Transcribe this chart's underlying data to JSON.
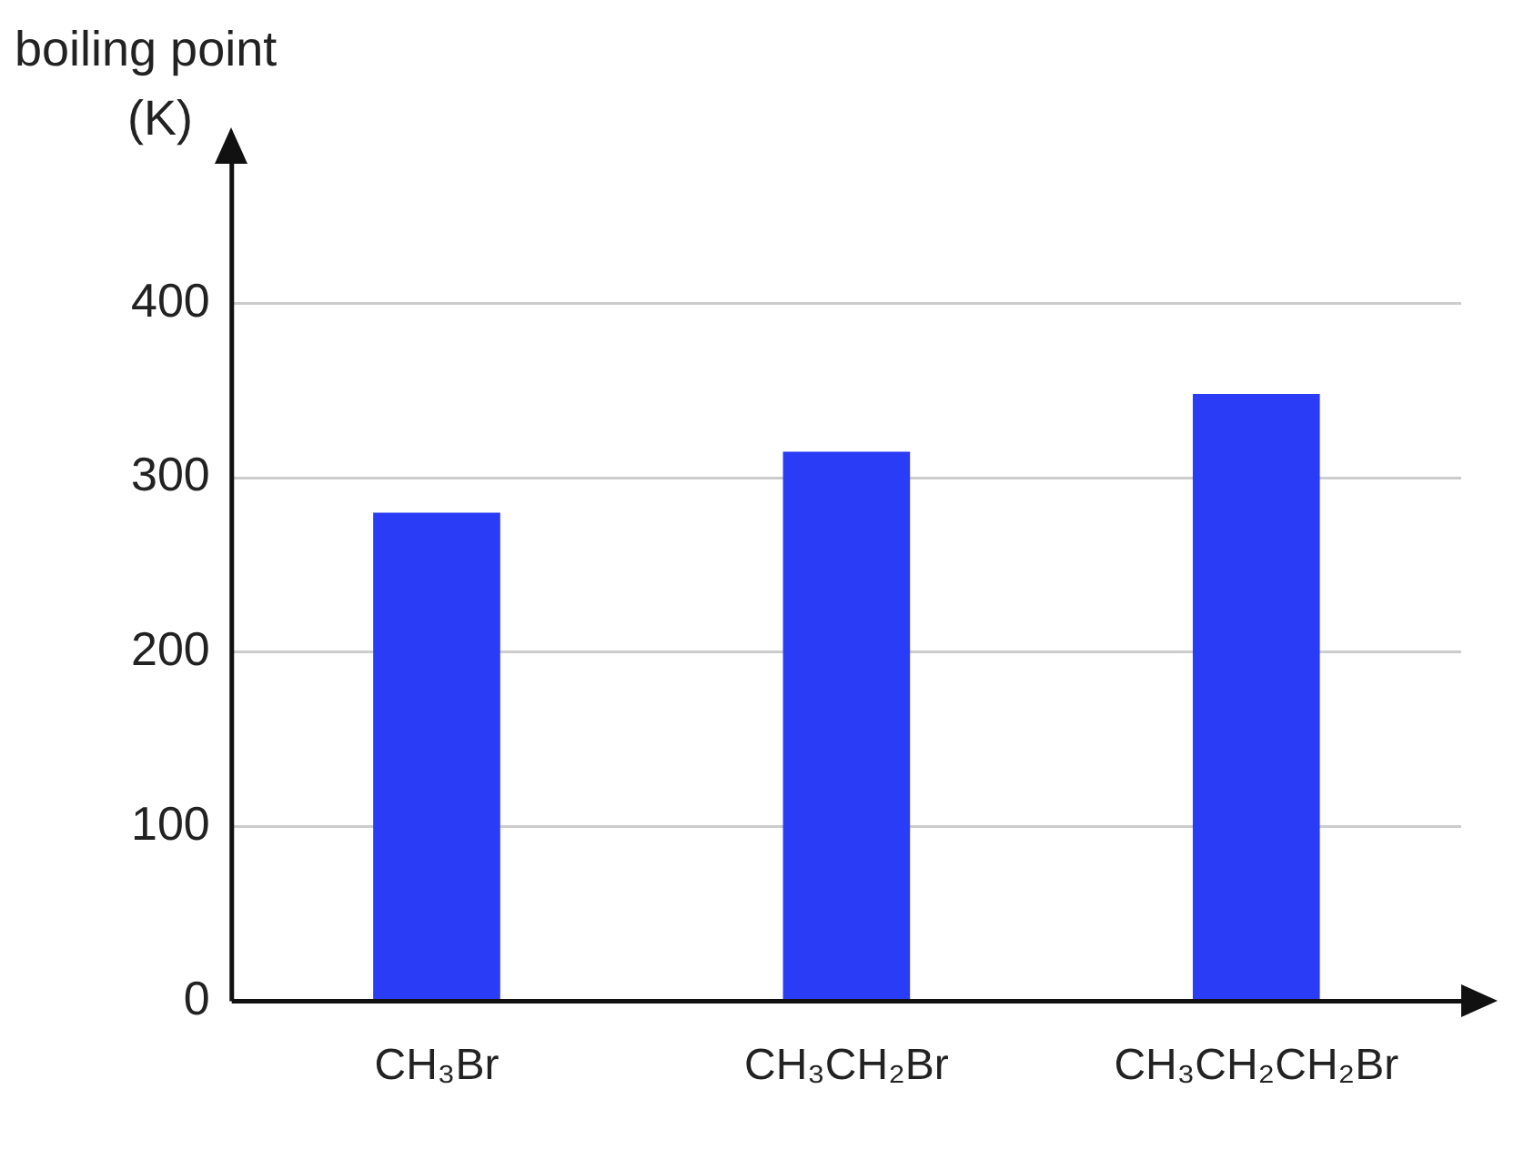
{
  "chart_data": {
    "type": "bar",
    "ylabel": "boiling point (K)",
    "categories": [
      "CH₃Br",
      "CH₃CH₂Br",
      "CH₃CH₂CH₂Br"
    ],
    "values": [
      280,
      315,
      348
    ],
    "color": "#2b3cf6",
    "ylim": [
      0,
      480
    ],
    "yticks": [
      0,
      100,
      200,
      300,
      400
    ],
    "grid": "y",
    "legend": false
  }
}
